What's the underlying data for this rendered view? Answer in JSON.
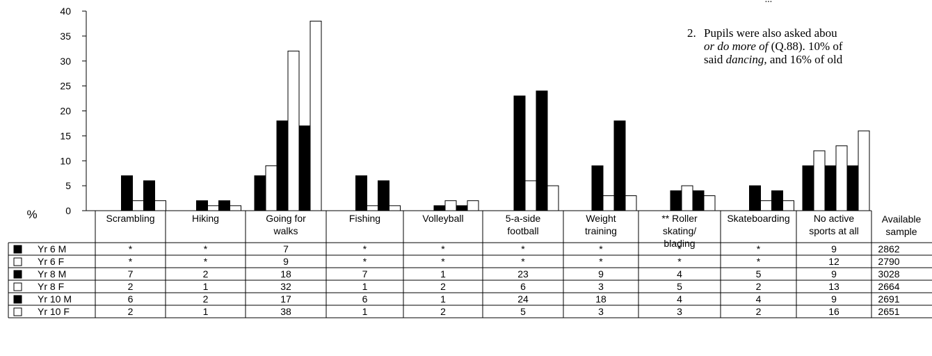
{
  "side_text": {
    "top_fragment": "...",
    "item_number": "2.",
    "line1": "Pupils were also asked abou",
    "line2_italic": "or do more of",
    "line2_rest": " (Q.88). 10% of",
    "line3_pre": "said ",
    "line3_italic": "dancing,",
    "line3_rest": " and 16% of old"
  },
  "chart_data": {
    "type": "bar",
    "ylabel": "%",
    "ylim": [
      0,
      40
    ],
    "yticks": [
      0,
      5,
      10,
      15,
      20,
      25,
      30,
      35,
      40
    ],
    "categories": [
      "Scrambling",
      "Hiking",
      "Going for walks",
      "Fishing",
      "Volleyball",
      "5-a-side football",
      "Weight training",
      "** Roller skating/ blading",
      "Skateboarding",
      "No active sports at all"
    ],
    "category_lines": [
      [
        "Scrambling"
      ],
      [
        "Hiking"
      ],
      [
        "Going for",
        "walks"
      ],
      [
        "Fishing"
      ],
      [
        "Volleyball"
      ],
      [
        "5-a-side",
        "football"
      ],
      [
        "Weight",
        "training"
      ],
      [
        "** Roller",
        "skating/",
        "blading"
      ],
      [
        "Skateboarding"
      ],
      [
        "No active",
        "sports at all"
      ]
    ],
    "series": [
      {
        "name": "Yr 6 M",
        "fill": "#000000",
        "values": [
          null,
          null,
          7,
          null,
          null,
          null,
          null,
          null,
          null,
          9
        ],
        "labels": [
          "*",
          "*",
          "7",
          "*",
          "*",
          "*",
          "*",
          "*",
          "*",
          "9"
        ],
        "sample": "2862"
      },
      {
        "name": "Yr 6 F",
        "fill": "#ffffff",
        "values": [
          null,
          null,
          9,
          null,
          null,
          null,
          null,
          null,
          null,
          12
        ],
        "labels": [
          "*",
          "*",
          "9",
          "*",
          "*",
          "*",
          "*",
          "*",
          "*",
          "12"
        ],
        "sample": "2790"
      },
      {
        "name": "Yr 8 M",
        "fill": "#000000",
        "values": [
          7,
          2,
          18,
          7,
          1,
          23,
          9,
          4,
          5,
          9
        ],
        "labels": [
          "7",
          "2",
          "18",
          "7",
          "1",
          "23",
          "9",
          "4",
          "5",
          "9"
        ],
        "sample": "3028"
      },
      {
        "name": "Yr 8 F",
        "fill": "#ffffff",
        "values": [
          2,
          1,
          32,
          1,
          2,
          6,
          3,
          5,
          2,
          13
        ],
        "labels": [
          "2",
          "1",
          "32",
          "1",
          "2",
          "6",
          "3",
          "5",
          "2",
          "13"
        ],
        "sample": "2664"
      },
      {
        "name": "Yr 10 M",
        "fill": "#000000",
        "values": [
          6,
          2,
          17,
          6,
          1,
          24,
          18,
          4,
          4,
          9
        ],
        "labels": [
          "6",
          "2",
          "17",
          "6",
          "1",
          "24",
          "18",
          "4",
          "4",
          "9"
        ],
        "sample": "2691"
      },
      {
        "name": "Yr 10 F",
        "fill": "#ffffff",
        "values": [
          2,
          1,
          38,
          1,
          2,
          5,
          3,
          3,
          2,
          16
        ],
        "labels": [
          "2",
          "1",
          "38",
          "1",
          "2",
          "5",
          "3",
          "3",
          "2",
          "16"
        ],
        "sample": "2651"
      }
    ],
    "sample_header_lines": [
      "Available",
      "sample"
    ],
    "grid": false,
    "legend": "table-left"
  }
}
